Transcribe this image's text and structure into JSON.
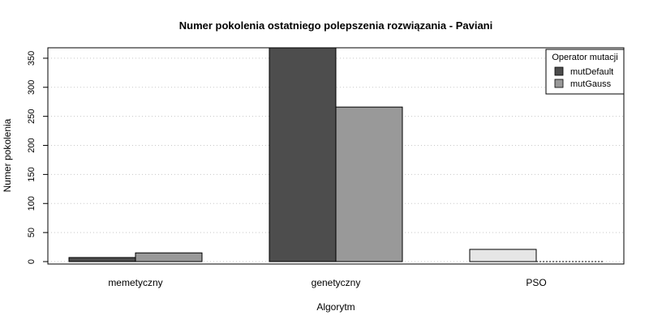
{
  "chart_data": {
    "type": "bar",
    "title": "Numer pokolenia ostatniego polepszenia rozwiązania - Paviani",
    "xlabel": "Algorytm",
    "ylabel": "Numer pokolenia",
    "categories": [
      "memetyczny",
      "genetyczny",
      "PSO"
    ],
    "series": [
      {
        "name": "mutDefault",
        "color": "#4d4d4d",
        "values": [
          7,
          368,
          21
        ]
      },
      {
        "name": "mutGauss",
        "color": "#999999",
        "values": [
          15,
          266,
          0
        ]
      }
    ],
    "pso_bar_color": "#e6e6e6",
    "ylim": [
      0,
      368
    ],
    "yticks": [
      0,
      50,
      100,
      150,
      200,
      250,
      300,
      350
    ],
    "grid": true,
    "grid_axis": "y",
    "legend": {
      "title": "Operator mutacji",
      "position": "top-right"
    }
  }
}
